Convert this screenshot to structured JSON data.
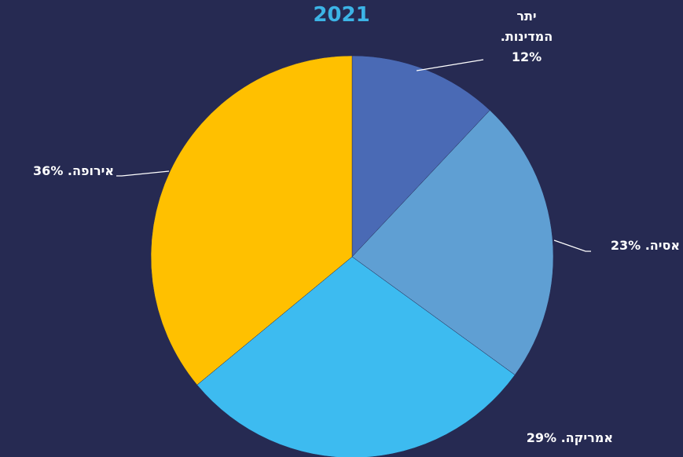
{
  "chart_data": {
    "type": "pie",
    "title": "2021",
    "values": [
      12,
      23,
      29,
      36
    ],
    "value_labels": [
      "יתר המדינות. 12%",
      "אסיה. 23%",
      "אמריקה. 29%",
      "אירופה. 36%"
    ],
    "colors": [
      "#4a6ab5",
      "#5f9fd3",
      "#3dbbf0",
      "#ffc000"
    ]
  }
}
